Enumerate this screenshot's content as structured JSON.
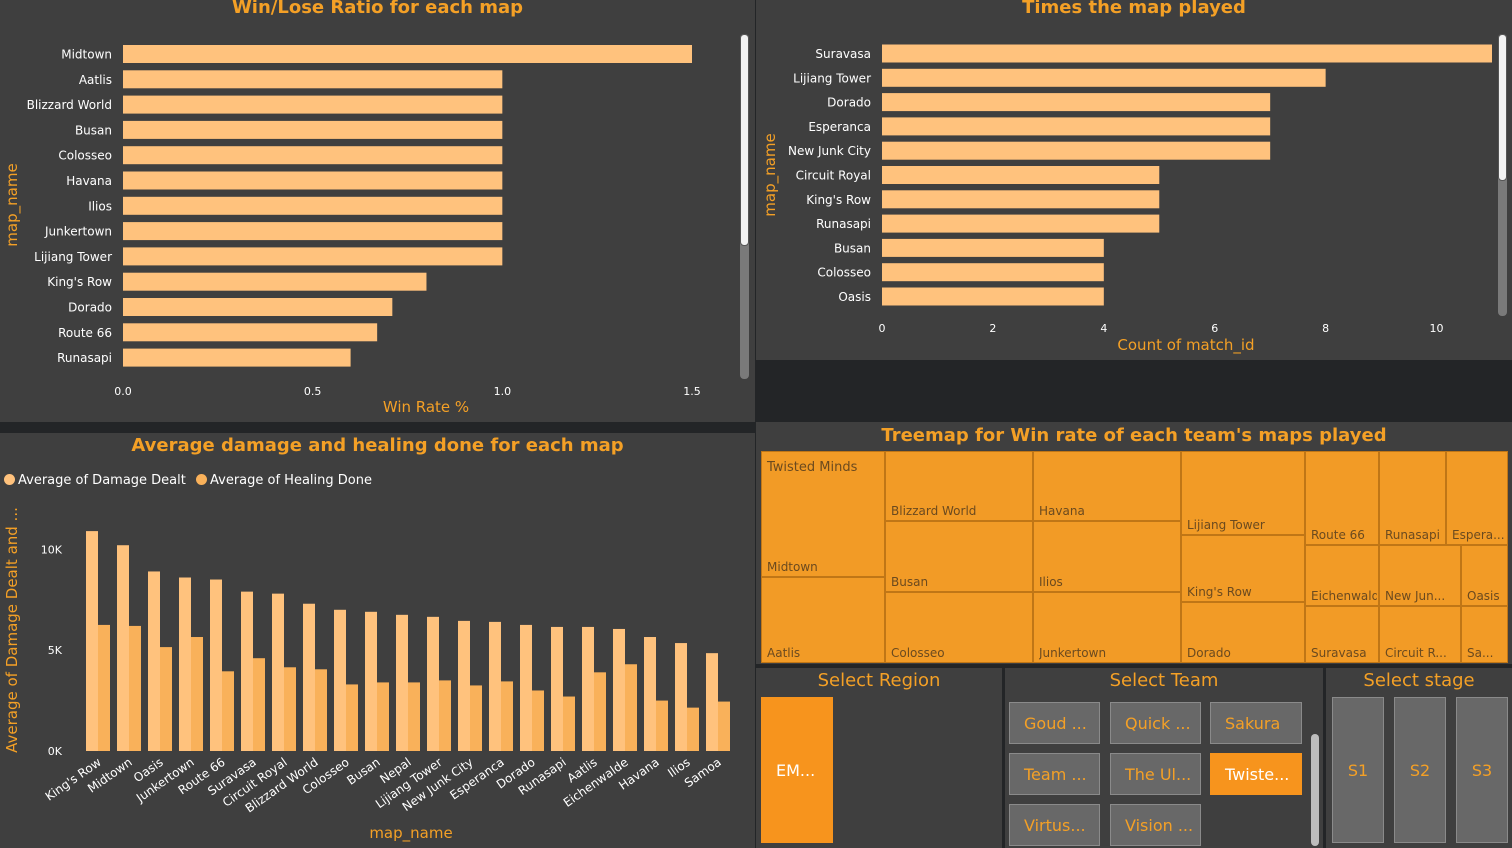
{
  "colors": {
    "bar": "#ffc27d",
    "bar2": "#f9b15a",
    "accent": "#f4a026",
    "panel": "#3f3f3f",
    "treemap": "#f29b26",
    "selected": "#f7941d"
  },
  "chart_data": [
    {
      "id": "winrate",
      "type": "bar",
      "orientation": "horizontal",
      "title": "Win/Lose Ratio for each map",
      "xlabel": "Win Rate %",
      "ylabel": "map_name",
      "categories": [
        "Midtown",
        "Aatlis",
        "Blizzard World",
        "Busan",
        "Colosseo",
        "Havana",
        "Ilios",
        "Junkertown",
        "Lijiang Tower",
        "King's Row",
        "Dorado",
        "Route 66",
        "Runasapi"
      ],
      "values": [
        1.5,
        1.0,
        1.0,
        1.0,
        1.0,
        1.0,
        1.0,
        1.0,
        1.0,
        0.8,
        0.71,
        0.67,
        0.6
      ],
      "xlim": [
        0,
        1.5
      ],
      "xticks": [
        "0.0",
        "0.5",
        "1.0",
        "1.5"
      ],
      "grid": false
    },
    {
      "id": "timesplayed",
      "type": "bar",
      "orientation": "horizontal",
      "title": "Times the map played",
      "xlabel": "Count of match_id",
      "ylabel": "map_name",
      "categories": [
        "Suravasa",
        "Lijiang Tower",
        "Dorado",
        "Esperanca",
        "New Junk City",
        "Circuit Royal",
        "King's Row",
        "Runasapi",
        "Busan",
        "Colosseo",
        "Oasis"
      ],
      "values": [
        11,
        8,
        7,
        7,
        7,
        5,
        5,
        5,
        4,
        4,
        4
      ],
      "xlim": [
        0,
        11
      ],
      "xticks": [
        "0",
        "2",
        "4",
        "6",
        "8",
        "10"
      ],
      "grid": false
    },
    {
      "id": "damageheal",
      "type": "bar",
      "title": "Average damage and healing done for each map",
      "xlabel": "map_name",
      "ylabel": "Average of Damage Dealt and ...",
      "legend_position": "top-left",
      "categories": [
        "King's Row",
        "Midtown",
        "Oasis",
        "Junkertown",
        "Route 66",
        "Suravasa",
        "Circuit Royal",
        "Blizzard World",
        "Colosseo",
        "Busan",
        "Nepal",
        "Lijiang Tower",
        "New Junk City",
        "Esperanca",
        "Dorado",
        "Runasapi",
        "Aatlis",
        "Eichenwalde",
        "Havana",
        "Ilios",
        "Samoa"
      ],
      "series": [
        {
          "name": "Average of Damage Dealt",
          "values": [
            10900,
            10200,
            8900,
            8600,
            8500,
            7900,
            7800,
            7300,
            7000,
            6900,
            6750,
            6650,
            6450,
            6400,
            6250,
            6150,
            6150,
            6050,
            5650,
            5350,
            4850
          ]
        },
        {
          "name": "Average of Healing Done",
          "values": [
            6250,
            6200,
            5150,
            5650,
            3950,
            4600,
            4150,
            4050,
            3300,
            3400,
            3400,
            3500,
            3250,
            3450,
            3000,
            2700,
            3900,
            4300,
            2500,
            2150,
            2450
          ]
        }
      ],
      "ylim": [
        0,
        11500
      ],
      "yticks": [
        "0K",
        "5K",
        "10K"
      ],
      "grid": false
    },
    {
      "id": "treemap",
      "type": "treemap",
      "title": "Treemap for Win rate of each team's maps played",
      "group": "Twisted Minds",
      "labels": [
        "Midtown",
        "Aatlis",
        "Blizzard World",
        "Busan",
        "Colosseo",
        "Havana",
        "Ilios",
        "Junkertown",
        "Lijiang Tower",
        "King's Row",
        "Dorado",
        "Route 66",
        "Runasapi",
        "Espera...",
        "Eichenwalde",
        "New Jun...",
        "Oasis",
        "Suravasa",
        "Circuit R...",
        "Sa..."
      ]
    }
  ],
  "slicers": {
    "region": {
      "title": "Select Region",
      "options": [
        "EM..."
      ]
    },
    "team": {
      "title": "Select Team",
      "options": [
        "Goud ...",
        "Quick ...",
        "Sakura",
        "Team ...",
        "The Ul...",
        "Twiste...",
        "Virtus...",
        "Vision ..."
      ]
    },
    "stage": {
      "title": "Select stage",
      "options": [
        "S1",
        "S2",
        "S3"
      ]
    }
  }
}
